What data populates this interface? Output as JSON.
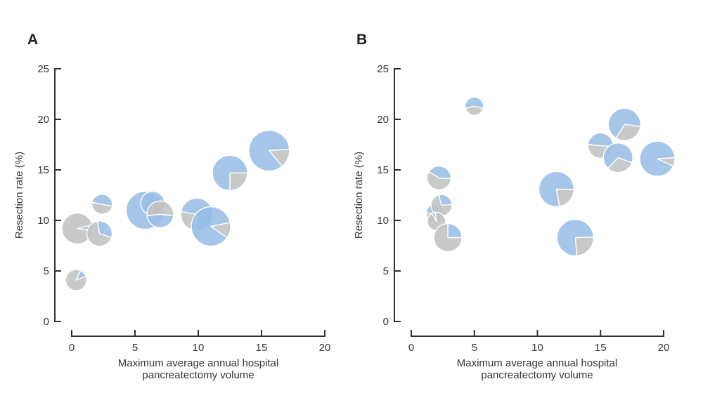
{
  "figure": {
    "background": "#ffffff",
    "marker_colors": {
      "blue_fill": "#98bee5",
      "gray_fill": "#c0c1c2",
      "wedge_outline": "#ffffff",
      "wedge_opacity": 0.88
    },
    "axis_color": "#303030",
    "text_color": "#363636"
  },
  "chart_data": [
    {
      "type": "scatter",
      "subtype": "scatter-pie-bubbles",
      "panel_label": "A",
      "xlabel_lines": [
        "Maximum average annual hospital",
        "pancreatectomy volume"
      ],
      "ylabel": "Resection rate (%)",
      "xlim": [
        0,
        20
      ],
      "ylim": [
        0,
        25
      ],
      "xticks": [
        0,
        5,
        10,
        15,
        20
      ],
      "yticks": [
        0,
        5,
        10,
        15,
        20,
        25
      ],
      "grid": false,
      "legend": "none",
      "points": [
        {
          "x": 0.45,
          "y": 9.2,
          "r": 22,
          "blue": 0.06,
          "blue_start": 76
        },
        {
          "x": 2.2,
          "y": 8.7,
          "r": 18,
          "blue": 0.33,
          "blue_start": 350
        },
        {
          "x": 0.35,
          "y": 4.1,
          "r": 15,
          "blue": 0.12,
          "blue_start": 25
        },
        {
          "x": 2.4,
          "y": 11.6,
          "r": 15,
          "blue": 0.5,
          "blue_start": 281
        },
        {
          "x": 5.8,
          "y": 11.0,
          "r": 27,
          "blue": 1.0,
          "blue_start": 0
        },
        {
          "x": 6.4,
          "y": 11.7,
          "r": 17,
          "blue": 0.71,
          "blue_start": 185
        },
        {
          "x": 7.0,
          "y": 10.6,
          "r": 19,
          "blue": 0.47,
          "blue_start": 95
        },
        {
          "x": 9.9,
          "y": 10.6,
          "r": 23,
          "blue": 0.74,
          "blue_start": 280
        },
        {
          "x": 11.0,
          "y": 9.4,
          "r": 28,
          "blue": 0.87,
          "blue_start": 125
        },
        {
          "x": 12.5,
          "y": 14.7,
          "r": 25,
          "blue": 0.75,
          "blue_start": 180
        },
        {
          "x": 15.6,
          "y": 16.9,
          "r": 29,
          "blue": 0.85,
          "blue_start": 140
        }
      ]
    },
    {
      "type": "scatter",
      "subtype": "scatter-pie-bubbles",
      "panel_label": "B",
      "xlabel_lines": [
        "Maximum average annual hospital",
        "pancreatectomy volume"
      ],
      "ylabel": "Resection rate (%)",
      "xlim": [
        0,
        20
      ],
      "ylim": [
        0,
        25
      ],
      "xticks": [
        0,
        5,
        10,
        15,
        20
      ],
      "yticks": [
        0,
        5,
        10,
        15,
        20,
        25
      ],
      "grid": false,
      "legend": "none",
      "points": [
        {
          "x": 5.0,
          "y": 21.3,
          "r": 13,
          "blue": 0.58,
          "blue_start": 256
        },
        {
          "x": 2.2,
          "y": 14.2,
          "r": 17,
          "blue": 0.42,
          "blue_start": 302
        },
        {
          "x": 1.9,
          "y": 10.7,
          "r": 13,
          "blue": 0.22,
          "blue_start": 272
        },
        {
          "x": 2.4,
          "y": 11.5,
          "r": 15,
          "blue": 0.28,
          "blue_start": 345
        },
        {
          "x": 2.0,
          "y": 9.9,
          "r": 13,
          "blue": 0.06,
          "blue_start": 330
        },
        {
          "x": 2.9,
          "y": 8.3,
          "r": 20,
          "blue": 0.25,
          "blue_start": 0
        },
        {
          "x": 11.5,
          "y": 13.1,
          "r": 25,
          "blue": 0.78,
          "blue_start": 170
        },
        {
          "x": 13.0,
          "y": 8.3,
          "r": 26,
          "blue": 0.76,
          "blue_start": 175
        },
        {
          "x": 15.0,
          "y": 17.4,
          "r": 18,
          "blue": 0.5,
          "blue_start": 275
        },
        {
          "x": 16.9,
          "y": 19.5,
          "r": 23,
          "blue": 0.68,
          "blue_start": 212
        },
        {
          "x": 16.4,
          "y": 16.2,
          "r": 21,
          "blue": 0.68,
          "blue_start": 225
        },
        {
          "x": 19.5,
          "y": 16.1,
          "r": 25,
          "blue": 0.92,
          "blue_start": 115
        }
      ]
    }
  ]
}
